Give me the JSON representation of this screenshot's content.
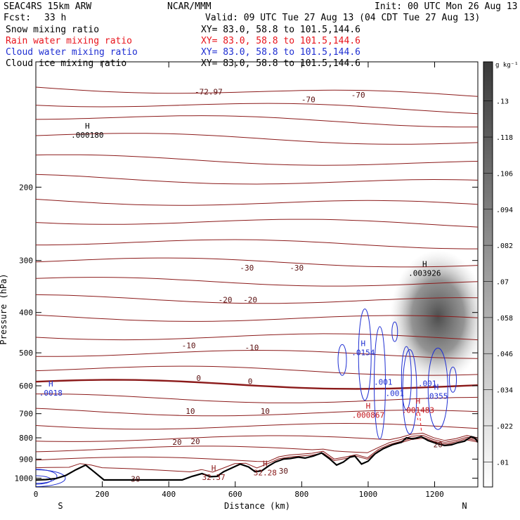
{
  "header": {
    "model": "SEAC4RS 15km ARW",
    "org": "NCAR/MMM",
    "init": "Init: 00 UTC Mon 26 Aug 13",
    "fcst_label": "Fcst:",
    "fcst_value": "33 h",
    "valid": "Valid: 09 UTC Tue 27 Aug 13 (04 CDT Tue 27 Aug 13)"
  },
  "fields": [
    {
      "name": "Snow mixing ratio",
      "xy": "XY=  83.0, 58.8 to 101.5,144.6",
      "color": "#000000"
    },
    {
      "name": "Rain water mixing ratio",
      "xy": "XY=  83.0, 58.8 to 101.5,144.6",
      "color": "#e8141c"
    },
    {
      "name": "Cloud water mixing ratio",
      "xy": "XY=  83.0, 58.8 to 101.5,144.6",
      "color": "#1f2fd2"
    },
    {
      "name": "Cloud ice mixing ratio",
      "xy": "XY=  83.0, 58.8 to 101.5,144.6",
      "color": "#000000"
    }
  ],
  "chart_data": {
    "type": "cross-section (pressure vs distance)",
    "xlabel": "Distance (km)",
    "ylabel": "Pressure (hPa)",
    "xlim": [
      0,
      1330
    ],
    "ylim": [
      1050,
      100
    ],
    "y_log_scale": true,
    "xticks": [
      0,
      200,
      400,
      600,
      800,
      1000,
      1200
    ],
    "yticks": [
      200,
      300,
      400,
      500,
      600,
      700,
      800,
      900,
      1000
    ],
    "end_labels": {
      "left": "S",
      "right": "N"
    },
    "colorbar": {
      "units": "g kg⁻¹",
      "levels": [
        ".01",
        ".022",
        ".034",
        ".046",
        ".058",
        ".07",
        ".082",
        ".094",
        ".106",
        ".118",
        ".13"
      ]
    },
    "temperature_contours": {
      "color": "#8b1a1a",
      "labels": [
        {
          "text": "-72.97",
          "x": 520,
          "p": 118
        },
        {
          "text": "-70",
          "x": 820,
          "p": 123
        },
        {
          "text": "-70",
          "x": 970,
          "p": 120
        },
        {
          "text": "-30",
          "x": 635,
          "p": 312
        },
        {
          "text": "-30",
          "x": 785,
          "p": 312
        },
        {
          "text": "-20",
          "x": 570,
          "p": 373
        },
        {
          "text": "-20",
          "x": 645,
          "p": 373
        },
        {
          "text": "-10",
          "x": 460,
          "p": 480
        },
        {
          "text": "-10",
          "x": 650,
          "p": 485
        },
        {
          "text": "0",
          "x": 490,
          "p": 575
        },
        {
          "text": "0",
          "x": 645,
          "p": 585
        },
        {
          "text": "10",
          "x": 465,
          "p": 690
        },
        {
          "text": "10",
          "x": 690,
          "p": 690
        },
        {
          "text": "20",
          "x": 425,
          "p": 818
        },
        {
          "text": "20",
          "x": 480,
          "p": 815
        },
        {
          "text": "20",
          "x": 1210,
          "p": 830
        },
        {
          "text": "30",
          "x": 300,
          "p": 1005
        },
        {
          "text": "30",
          "x": 745,
          "p": 960
        }
      ]
    },
    "extrema": [
      {
        "mark": "H",
        "value": ".000180",
        "x": 155,
        "p": 148,
        "field": "snow"
      },
      {
        "mark": "H",
        "value": ".003926",
        "x": 1170,
        "p": 318,
        "field": "cloud ice"
      },
      {
        "mark": "H",
        "value": ".0154",
        "x": 985,
        "p": 493,
        "field": "cloud water"
      },
      {
        "mark": "",
        "value": ".001",
        "x": 1045,
        "p": 580,
        "field": "cloud water"
      },
      {
        "mark": "",
        "value": ".001",
        "x": 1178,
        "p": 585,
        "field": "cloud water"
      },
      {
        "mark": "",
        "value": ".001",
        "x": 1080,
        "p": 618,
        "field": "cloud water"
      },
      {
        "mark": "H",
        "value": ".0018",
        "x": 45,
        "p": 617,
        "field": "cloud water"
      },
      {
        "mark": "H",
        "value": ".0355",
        "x": 1205,
        "p": 627,
        "field": "cloud water"
      },
      {
        "mark": "H",
        "value": ".001483",
        "x": 1150,
        "p": 678,
        "field": "rain water"
      },
      {
        "mark": "H",
        "value": ".000867",
        "x": 1000,
        "p": 697,
        "field": "rain water"
      },
      {
        "mark": "H",
        "value": "32.37",
        "x": 535,
        "p": 982,
        "field": "temperature"
      },
      {
        "mark": "H",
        "value": "32.28",
        "x": 690,
        "p": 958,
        "field": "temperature"
      }
    ],
    "terrain_surface_hPa": [
      [
        0,
        1010
      ],
      [
        30,
        1008
      ],
      [
        60,
        1002
      ],
      [
        90,
        985
      ],
      [
        120,
        955
      ],
      [
        150,
        930
      ],
      [
        175,
        965
      ],
      [
        205,
        1010
      ],
      [
        440,
        1010
      ],
      [
        470,
        990
      ],
      [
        500,
        975
      ],
      [
        525,
        992
      ],
      [
        545,
        990
      ],
      [
        565,
        965
      ],
      [
        590,
        945
      ],
      [
        615,
        925
      ],
      [
        640,
        940
      ],
      [
        660,
        965
      ],
      [
        680,
        960
      ],
      [
        700,
        935
      ],
      [
        720,
        915
      ],
      [
        745,
        900
      ],
      [
        765,
        897
      ],
      [
        790,
        890
      ],
      [
        810,
        895
      ],
      [
        835,
        885
      ],
      [
        860,
        870
      ],
      [
        885,
        900
      ],
      [
        905,
        930
      ],
      [
        925,
        915
      ],
      [
        945,
        890
      ],
      [
        960,
        885
      ],
      [
        980,
        925
      ],
      [
        1000,
        910
      ],
      [
        1020,
        875
      ],
      [
        1045,
        850
      ],
      [
        1075,
        830
      ],
      [
        1100,
        820
      ],
      [
        1115,
        800
      ],
      [
        1135,
        805
      ],
      [
        1160,
        795
      ],
      [
        1180,
        812
      ],
      [
        1205,
        825
      ],
      [
        1230,
        835
      ],
      [
        1250,
        832
      ],
      [
        1270,
        822
      ],
      [
        1290,
        815
      ],
      [
        1310,
        795
      ],
      [
        1318,
        798
      ],
      [
        1325,
        808
      ],
      [
        1330,
        820
      ]
    ],
    "cloud_ice_shading": {
      "center_x": 1210,
      "center_p": 410,
      "max": 0.13
    }
  }
}
